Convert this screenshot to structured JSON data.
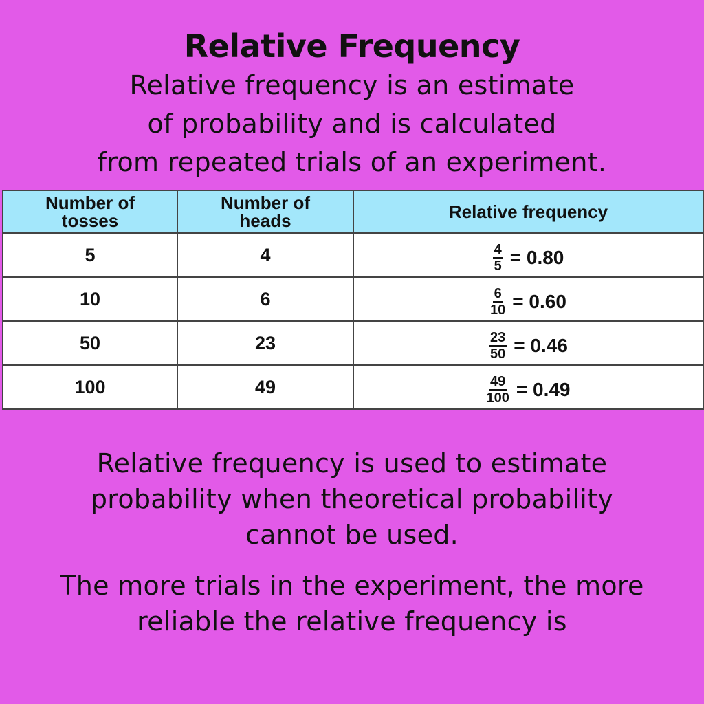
{
  "title": "Relative Frequency",
  "intro": [
    "Relative frequency is an estimate",
    "of probability and is calculated",
    "from repeated trials of an experiment."
  ],
  "table": {
    "headers": {
      "tosses": [
        "Number of",
        "tosses"
      ],
      "heads": [
        "Number of",
        "heads"
      ],
      "relative": "Relative frequency"
    },
    "rows": [
      {
        "tosses": "5",
        "heads": "4",
        "num": "4",
        "den": "5",
        "value": "= 0.80"
      },
      {
        "tosses": "10",
        "heads": "6",
        "num": "6",
        "den": "10",
        "value": "= 0.60"
      },
      {
        "tosses": "50",
        "heads": "23",
        "num": "23",
        "den": "50",
        "value": "= 0.46"
      },
      {
        "tosses": "100",
        "heads": "49",
        "num": "49",
        "den": "100",
        "value": "= 0.49"
      }
    ]
  },
  "paragraph1": [
    "Relative frequency is used to estimate",
    "probability when theoretical probability",
    "cannot be used."
  ],
  "paragraph2": [
    "The more trials in the experiment, the more",
    "reliable the relative frequency is"
  ],
  "colors": {
    "background": "#e25ae8",
    "header_fill": "#a3e7fb",
    "cell_fill": "#ffffff"
  }
}
